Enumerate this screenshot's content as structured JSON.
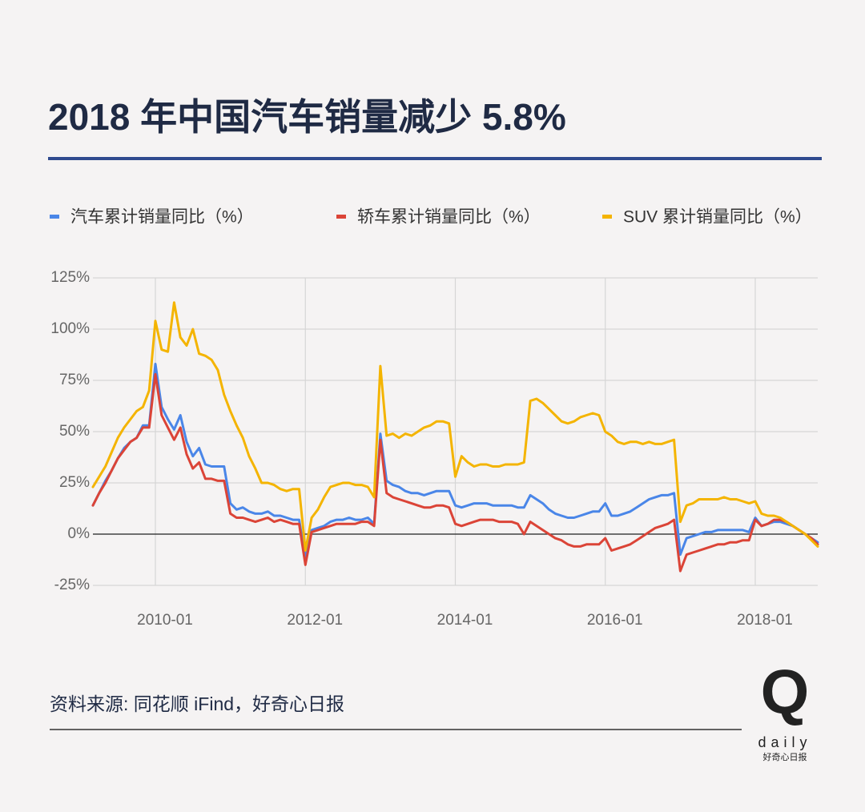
{
  "chart_data": {
    "type": "line",
    "title": "2018 年中国汽车销量减少 5.8%",
    "source": "资料来源: 同花顺 iFind，好奇心日报",
    "logo": {
      "mark": "Q",
      "word": "daily",
      "name": "好奇心日报"
    },
    "x": [
      "2009-03",
      "2009-04",
      "2009-05",
      "2009-06",
      "2009-07",
      "2009-08",
      "2009-09",
      "2009-10",
      "2009-11",
      "2009-12",
      "2010-01",
      "2010-02",
      "2010-03",
      "2010-04",
      "2010-05",
      "2010-06",
      "2010-07",
      "2010-08",
      "2010-09",
      "2010-10",
      "2010-11",
      "2010-12",
      "2011-01",
      "2011-02",
      "2011-03",
      "2011-04",
      "2011-05",
      "2011-06",
      "2011-07",
      "2011-08",
      "2011-09",
      "2011-10",
      "2011-11",
      "2011-12",
      "2012-01",
      "2012-02",
      "2012-03",
      "2012-04",
      "2012-05",
      "2012-06",
      "2012-07",
      "2012-08",
      "2012-09",
      "2012-10",
      "2012-11",
      "2012-12",
      "2013-01",
      "2013-02",
      "2013-03",
      "2013-04",
      "2013-05",
      "2013-06",
      "2013-07",
      "2013-08",
      "2013-09",
      "2013-10",
      "2013-11",
      "2013-12",
      "2014-01",
      "2014-02",
      "2014-03",
      "2014-04",
      "2014-05",
      "2014-06",
      "2014-07",
      "2014-08",
      "2014-09",
      "2014-10",
      "2014-11",
      "2014-12",
      "2015-01",
      "2015-02",
      "2015-03",
      "2015-04",
      "2015-05",
      "2015-06",
      "2015-07",
      "2015-08",
      "2015-09",
      "2015-10",
      "2015-11",
      "2015-12",
      "2016-01",
      "2016-02",
      "2016-03",
      "2016-04",
      "2016-05",
      "2016-06",
      "2016-07",
      "2016-08",
      "2016-09",
      "2016-10",
      "2016-11",
      "2016-12",
      "2017-01",
      "2017-02",
      "2017-03",
      "2017-04",
      "2017-05",
      "2017-06",
      "2017-07",
      "2017-08",
      "2017-09",
      "2017-10",
      "2017-11",
      "2017-12",
      "2018-01",
      "2018-02",
      "2018-03",
      "2018-04",
      "2018-05",
      "2018-06",
      "2018-07",
      "2018-08",
      "2018-09",
      "2018-10",
      "2018-11"
    ],
    "series": [
      {
        "name": "汽车累计销量同比（%）",
        "color": "#4a86e8",
        "values": [
          14,
          20,
          26,
          31,
          37,
          42,
          45,
          47,
          53,
          53,
          83,
          62,
          56,
          51,
          58,
          45,
          38,
          42,
          34,
          33,
          33,
          33,
          15,
          12,
          13,
          11,
          10,
          10,
          11,
          9,
          9,
          8,
          7,
          7,
          -12,
          2,
          3,
          4,
          6,
          7,
          7,
          8,
          7,
          7,
          8,
          5,
          49,
          26,
          24,
          23,
          21,
          20,
          20,
          19,
          20,
          21,
          21,
          21,
          14,
          13,
          14,
          15,
          15,
          15,
          14,
          14,
          14,
          14,
          13,
          13,
          19,
          17,
          15,
          12,
          10,
          9,
          8,
          8,
          9,
          10,
          11,
          11,
          15,
          9,
          9,
          10,
          11,
          13,
          15,
          17,
          18,
          19,
          19,
          20,
          -10,
          -2,
          -1,
          0,
          1,
          1,
          2,
          2,
          2,
          2,
          2,
          1,
          8,
          4,
          5,
          6,
          6,
          5,
          4,
          2,
          0,
          -2,
          -4
        ]
      },
      {
        "name": "轿车累计销量同比（%）",
        "color": "#db4437",
        "values": [
          14,
          20,
          25,
          31,
          37,
          41,
          45,
          47,
          52,
          52,
          78,
          58,
          52,
          46,
          52,
          39,
          32,
          35,
          27,
          27,
          26,
          26,
          10,
          8,
          8,
          7,
          6,
          7,
          8,
          6,
          7,
          6,
          5,
          5,
          -15,
          1,
          2,
          3,
          4,
          5,
          5,
          5,
          5,
          6,
          6,
          4,
          46,
          20,
          18,
          17,
          16,
          15,
          14,
          13,
          13,
          14,
          14,
          13,
          5,
          4,
          5,
          6,
          7,
          7,
          7,
          6,
          6,
          6,
          5,
          0,
          6,
          4,
          2,
          0,
          -2,
          -3,
          -5,
          -6,
          -6,
          -5,
          -5,
          -5,
          -2,
          -8,
          -7,
          -6,
          -5,
          -3,
          -1,
          1,
          3,
          4,
          5,
          7,
          -18,
          -10,
          -9,
          -8,
          -7,
          -6,
          -5,
          -5,
          -4,
          -4,
          -3,
          -3,
          7,
          4,
          5,
          7,
          7,
          6,
          4,
          2,
          0,
          -2,
          -5
        ]
      },
      {
        "name": "SUV 累计销量同比（%）",
        "color": "#f4b400",
        "values": [
          23,
          28,
          33,
          40,
          47,
          52,
          56,
          60,
          62,
          70,
          104,
          90,
          89,
          113,
          96,
          92,
          100,
          88,
          87,
          85,
          80,
          68,
          60,
          53,
          47,
          38,
          32,
          25,
          25,
          24,
          22,
          21,
          22,
          22,
          -8,
          8,
          12,
          18,
          23,
          24,
          25,
          25,
          24,
          24,
          23,
          18,
          82,
          48,
          49,
          47,
          49,
          48,
          50,
          52,
          53,
          55,
          55,
          54,
          28,
          38,
          35,
          33,
          34,
          34,
          33,
          33,
          34,
          34,
          34,
          35,
          65,
          66,
          64,
          61,
          58,
          55,
          54,
          55,
          57,
          58,
          59,
          58,
          50,
          48,
          45,
          44,
          45,
          45,
          44,
          45,
          44,
          44,
          45,
          46,
          6,
          14,
          15,
          17,
          17,
          17,
          17,
          18,
          17,
          17,
          16,
          15,
          16,
          10,
          9,
          9,
          8,
          6,
          4,
          2,
          0,
          -3,
          -6
        ]
      }
    ],
    "xlim": [
      "2009-03",
      "2018-11"
    ],
    "xticks": [
      "2010-01",
      "2012-01",
      "2014-01",
      "2016-01",
      "2018-01"
    ],
    "ylim": [
      -25,
      125
    ],
    "yticks": [
      {
        "value": -25,
        "label": "-25%"
      },
      {
        "value": 0,
        "label": "0%"
      },
      {
        "value": 25,
        "label": "25%"
      },
      {
        "value": 50,
        "label": "50%"
      },
      {
        "value": 75,
        "label": "75%"
      },
      {
        "value": 100,
        "label": "100%"
      },
      {
        "value": 125,
        "label": "125%"
      }
    ],
    "grid": true
  }
}
